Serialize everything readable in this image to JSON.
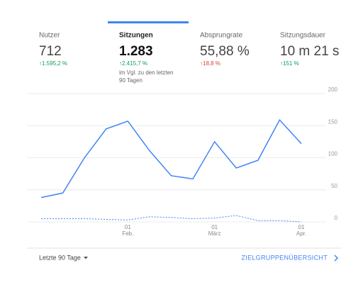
{
  "metrics": [
    {
      "label": "Nutzer",
      "value": "712",
      "change": "↑1.595,2 %",
      "trend": "up"
    },
    {
      "label": "Sitzungen",
      "value": "1.283",
      "change": "↑2.415,7 %",
      "trend": "up",
      "note": [
        "im Vgl. zu den letzten",
        "90 Tagen"
      ]
    },
    {
      "label": "Absprungrate",
      "value": "55,88 %",
      "change": "↑18,8 %",
      "trend": "down"
    },
    {
      "label": "Sitzungsdauer",
      "value": "10 m 21 s",
      "change": "↑151 %",
      "trend": "up"
    }
  ],
  "selected_metric": 1,
  "chart_data": {
    "type": "line",
    "categories": [
      null,
      null,
      null,
      null,
      [
        "01",
        "Feb."
      ],
      null,
      null,
      null,
      [
        "01",
        "März"
      ],
      null,
      null,
      null,
      [
        "01",
        "Apr."
      ]
    ],
    "series": [
      {
        "color": "#4285f4",
        "style": "solid",
        "values": [
          38,
          45,
          100,
          145,
          157,
          111,
          72,
          67,
          125,
          84,
          96,
          159,
          122
        ]
      },
      {
        "color": "#4285f4",
        "style": "dotted",
        "values": [
          5,
          5,
          5,
          4,
          3,
          8,
          7,
          5,
          6,
          10,
          2,
          2,
          0
        ]
      }
    ],
    "ylim": [
      0,
      200
    ],
    "yticks": [
      0,
      50,
      100,
      150,
      200
    ],
    "grid": true
  },
  "footer": {
    "range": "Letzte 90 Tage",
    "link": "ZIELGRUPPENÜBERSICHT"
  }
}
